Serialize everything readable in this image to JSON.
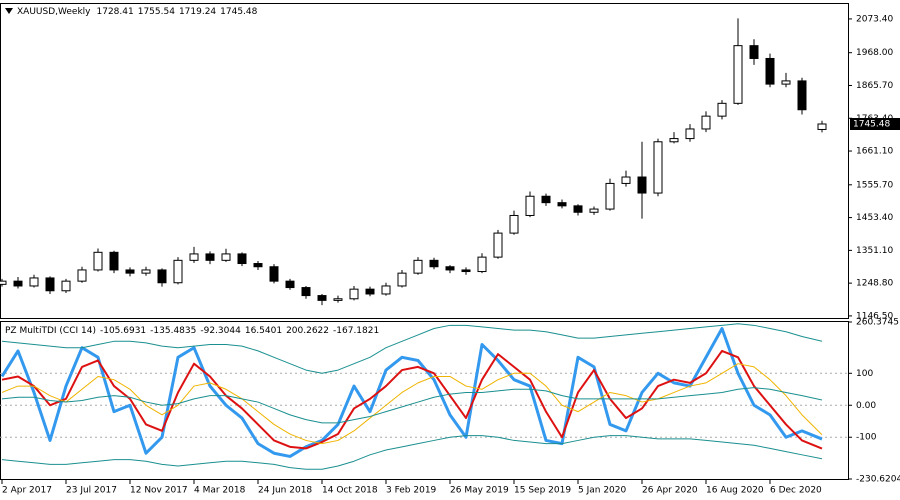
{
  "chart_data": [
    {
      "type": "candlestick",
      "title": "XAUUSD,Weekly",
      "x": [
        0,
        4,
        8,
        12,
        16,
        20,
        24,
        28,
        32,
        36,
        40,
        44,
        48,
        52,
        56,
        60,
        64,
        68,
        72,
        76,
        80,
        84,
        88,
        92,
        96,
        100,
        104,
        108,
        112,
        116,
        120,
        124,
        128,
        132,
        136,
        140,
        144,
        148,
        152,
        156,
        160,
        164,
        168,
        172,
        176,
        180,
        184,
        188,
        192,
        196,
        200,
        205
      ],
      "open": [
        1245,
        1255,
        1240,
        1265,
        1225,
        1255,
        1290,
        1345,
        1290,
        1280,
        1290,
        1250,
        1320,
        1340,
        1320,
        1340,
        1310,
        1300,
        1255,
        1235,
        1210,
        1195,
        1200,
        1230,
        1215,
        1240,
        1280,
        1320,
        1300,
        1290,
        1285,
        1330,
        1405,
        1460,
        1520,
        1500,
        1490,
        1470,
        1480,
        1560,
        1580,
        1530,
        1690,
        1700,
        1730,
        1770,
        1810,
        1990,
        1950,
        1870,
        1880,
        1728.41
      ],
      "high": [
        1262,
        1268,
        1275,
        1270,
        1262,
        1300,
        1357,
        1350,
        1298,
        1300,
        1295,
        1330,
        1362,
        1348,
        1356,
        1345,
        1318,
        1308,
        1262,
        1240,
        1215,
        1210,
        1240,
        1238,
        1250,
        1290,
        1330,
        1328,
        1305,
        1298,
        1342,
        1415,
        1475,
        1535,
        1528,
        1510,
        1495,
        1488,
        1575,
        1600,
        1690,
        1700,
        1720,
        1745,
        1785,
        1820,
        2075,
        2010,
        1965,
        1905,
        1890,
        1755.54
      ],
      "low": [
        1238,
        1232,
        1235,
        1215,
        1218,
        1250,
        1285,
        1280,
        1270,
        1272,
        1238,
        1245,
        1312,
        1308,
        1315,
        1302,
        1290,
        1248,
        1228,
        1200,
        1180,
        1188,
        1195,
        1208,
        1210,
        1235,
        1275,
        1292,
        1280,
        1275,
        1280,
        1325,
        1400,
        1455,
        1490,
        1482,
        1460,
        1462,
        1475,
        1550,
        1450,
        1520,
        1685,
        1690,
        1720,
        1760,
        1805,
        1930,
        1860,
        1860,
        1775,
        1719.24
      ],
      "close": [
        1255,
        1240,
        1265,
        1225,
        1255,
        1290,
        1345,
        1290,
        1280,
        1290,
        1250,
        1320,
        1340,
        1320,
        1340,
        1310,
        1300,
        1255,
        1235,
        1210,
        1195,
        1200,
        1230,
        1215,
        1240,
        1280,
        1320,
        1300,
        1290,
        1285,
        1330,
        1405,
        1460,
        1520,
        1500,
        1490,
        1470,
        1480,
        1560,
        1580,
        1530,
        1690,
        1700,
        1730,
        1770,
        1810,
        1990,
        1950,
        1870,
        1880,
        1790,
        1745.48
      ],
      "up_color": "#ffffff",
      "down_color": "#000000",
      "line_color": "#000000",
      "xlim": [
        -0.5,
        211.5
      ],
      "ylim": [
        1140,
        2120
      ],
      "yticks": [
        {
          "value": 2073.4,
          "label": "2073.40"
        },
        {
          "value": 1968,
          "label": "1968.00"
        },
        {
          "value": 1865.7,
          "label": "1865.70"
        },
        {
          "value": 1763.4,
          "label": "1763.40"
        },
        {
          "value": 1661.1,
          "label": "1661.10"
        },
        {
          "value": 1555.7,
          "label": "1555.70"
        },
        {
          "value": 1453.4,
          "label": "1453.40"
        },
        {
          "value": 1351.1,
          "label": "1351.10"
        },
        {
          "value": 1248.8,
          "label": "1248.80"
        },
        {
          "value": 1146.5,
          "label": "1146.50"
        }
      ],
      "grid": false
    },
    {
      "type": "line",
      "title": "PZ MultiTDI (CCI 14)",
      "x": [
        0,
        4,
        8,
        12,
        16,
        20,
        24,
        28,
        32,
        36,
        40,
        44,
        48,
        52,
        56,
        60,
        64,
        68,
        72,
        76,
        80,
        84,
        88,
        92,
        96,
        100,
        104,
        108,
        112,
        116,
        120,
        124,
        128,
        132,
        136,
        140,
        144,
        148,
        152,
        156,
        160,
        164,
        168,
        172,
        176,
        180,
        184,
        188,
        192,
        196,
        200,
        205
      ],
      "series": [
        {
          "color": "#3399ee",
          "values": [
            90,
            170,
            40,
            -110,
            60,
            180,
            150,
            -20,
            0,
            -150,
            -100,
            150,
            180,
            60,
            0,
            -40,
            -120,
            -150,
            -160,
            -130,
            -110,
            -60,
            60,
            -20,
            110,
            150,
            140,
            80,
            -30,
            -100,
            190,
            140,
            80,
            60,
            -110,
            -120,
            150,
            120,
            -60,
            -80,
            40,
            100,
            70,
            60,
            150,
            240,
            100,
            0,
            -30,
            -100,
            -80,
            -105.6931
          ]
        },
        {
          "color": "#dd1111",
          "values": [
            80,
            90,
            60,
            0,
            20,
            120,
            140,
            60,
            20,
            -60,
            -80,
            40,
            130,
            90,
            30,
            -10,
            -60,
            -110,
            -130,
            -135,
            -115,
            -90,
            -10,
            20,
            60,
            110,
            120,
            100,
            30,
            -40,
            80,
            160,
            120,
            80,
            -20,
            -100,
            40,
            110,
            20,
            -40,
            -10,
            60,
            80,
            70,
            100,
            170,
            150,
            60,
            0,
            -60,
            -110,
            -135.4835
          ]
        },
        {
          "color": "#f0b400",
          "values": [
            40,
            60,
            60,
            30,
            10,
            50,
            90,
            80,
            50,
            0,
            -30,
            0,
            60,
            70,
            50,
            20,
            -20,
            -60,
            -90,
            -110,
            -120,
            -110,
            -80,
            -40,
            0,
            40,
            70,
            90,
            90,
            60,
            50,
            80,
            100,
            100,
            60,
            0,
            -20,
            10,
            40,
            30,
            10,
            20,
            40,
            60,
            70,
            100,
            130,
            120,
            80,
            30,
            -30,
            -92.3044
          ]
        },
        {
          "color": "#1a8f8f",
          "values": [
            20,
            25,
            25,
            15,
            10,
            15,
            25,
            30,
            25,
            10,
            0,
            5,
            20,
            30,
            30,
            20,
            10,
            -10,
            -30,
            -45,
            -55,
            -55,
            -45,
            -35,
            -20,
            -5,
            10,
            25,
            35,
            40,
            40,
            45,
            50,
            50,
            45,
            30,
            20,
            20,
            20,
            20,
            20,
            20,
            25,
            30,
            35,
            40,
            50,
            55,
            50,
            40,
            30,
            16.5401
          ]
        },
        {
          "color": "#1a8f8f",
          "values": [
            200,
            195,
            190,
            185,
            180,
            180,
            190,
            200,
            200,
            195,
            185,
            180,
            185,
            190,
            190,
            185,
            170,
            150,
            130,
            110,
            100,
            110,
            130,
            150,
            180,
            200,
            220,
            240,
            250,
            250,
            245,
            240,
            235,
            235,
            230,
            220,
            210,
            210,
            215,
            220,
            225,
            230,
            235,
            240,
            245,
            250,
            255,
            250,
            240,
            230,
            215,
            200.2622
          ]
        },
        {
          "color": "#1a8f8f",
          "values": [
            -170,
            -175,
            -180,
            -185,
            -185,
            -180,
            -175,
            -170,
            -170,
            -175,
            -185,
            -190,
            -185,
            -180,
            -175,
            -175,
            -180,
            -185,
            -195,
            -200,
            -200,
            -190,
            -175,
            -155,
            -140,
            -130,
            -120,
            -110,
            -100,
            -95,
            -95,
            -100,
            -110,
            -115,
            -120,
            -120,
            -110,
            -100,
            -95,
            -95,
            -100,
            -105,
            -105,
            -105,
            -110,
            -115,
            -120,
            -125,
            -135,
            -145,
            -155,
            -167.1821
          ]
        }
      ],
      "xlim": [
        -0.5,
        211.5
      ],
      "ylim": [
        -230.6204,
        260.3745
      ],
      "yticks": [
        260.3745,
        100,
        {
          "value": 0,
          "label": "0.00"
        },
        -100,
        -230.6204
      ],
      "xticks": [
        {
          "value": 0,
          "label": "2 Apr 2017"
        },
        {
          "value": 16,
          "label": "23 Jul 2017"
        },
        {
          "value": 32,
          "label": "12 Nov 2017"
        },
        {
          "value": 48,
          "label": "4 Mar 2018"
        },
        {
          "value": 64,
          "label": "24 Jun 2018"
        },
        {
          "value": 80,
          "label": "14 Oct 2018"
        },
        {
          "value": 96,
          "label": "3 Feb 2019"
        },
        {
          "value": 112,
          "label": "26 May 2019"
        },
        {
          "value": 128,
          "label": "15 Sep 2019"
        },
        {
          "value": 144,
          "label": "5 Jan 2020"
        },
        {
          "value": 160,
          "label": "26 Apr 2020"
        },
        {
          "value": 176,
          "label": "16 Aug 2020"
        },
        {
          "value": 192,
          "label": "6 Dec 2020"
        }
      ],
      "grid": true
    }
  ]
}
